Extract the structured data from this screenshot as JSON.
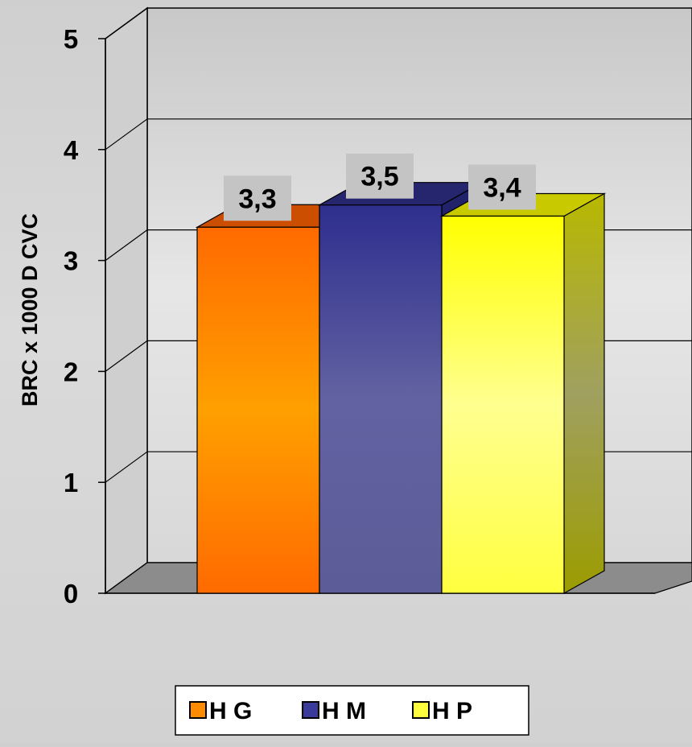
{
  "chart_data": {
    "type": "bar",
    "title": "",
    "xlabel": "",
    "ylabel": "BRC x 1000 D CVC",
    "ylim": [
      0,
      5
    ],
    "yticks": [
      "0",
      "1",
      "2",
      "3",
      "4",
      "5"
    ],
    "grid": true,
    "legend_position": "bottom",
    "series": [
      {
        "name": "H G",
        "value": 3.3,
        "label": "3,3",
        "color": "#ff8c00"
      },
      {
        "name": "H M",
        "value": 3.5,
        "label": "3,5",
        "color": "#3a3a9a"
      },
      {
        "name": "H P",
        "value": 3.4,
        "label": "3,4",
        "color": "#ffff40"
      }
    ]
  }
}
